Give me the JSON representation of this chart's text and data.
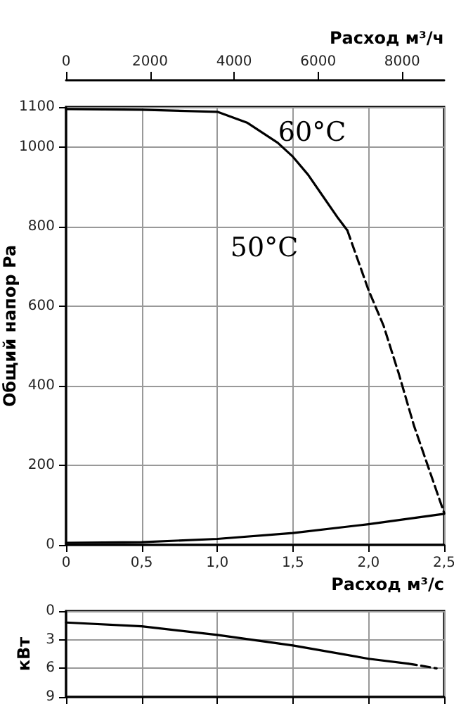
{
  "chart_data": [
    {
      "type": "line",
      "xlabel": "Расход м³/с",
      "ylabel": "Общий напор Pa",
      "x2label": "Расход м³/ч",
      "xlim": [
        0,
        2.5
      ],
      "xticks": [
        0,
        {
          "value": 0.5,
          "label": "0,5"
        },
        {
          "value": 1.0,
          "label": "1,0"
        },
        {
          "value": 1.5,
          "label": "1,5"
        },
        {
          "value": 2.0,
          "label": "2,0"
        },
        {
          "value": 2.5,
          "label": "2,5"
        }
      ],
      "x2lim": [
        0,
        9000
      ],
      "x2ticks": [
        0,
        2000,
        4000,
        6000,
        8000
      ],
      "ylim": [
        0,
        1100
      ],
      "yticks": [
        0,
        200,
        400,
        600,
        800,
        1000,
        1100
      ],
      "grid": true,
      "marker": "none",
      "annotations": [
        "60°C",
        "50°C"
      ],
      "series": [
        {
          "color": "#000000",
          "line_style": "solid",
          "x": [
            0,
            0.5,
            1.0,
            1.2,
            1.4,
            1.5,
            1.6,
            1.7,
            1.8,
            1.86
          ],
          "values": [
            1095,
            1093,
            1088,
            1060,
            1010,
            975,
            930,
            875,
            820,
            790
          ]
        },
        {
          "color": "#000000",
          "line_style": "dashed",
          "x": [
            1.86,
            2.0,
            2.1,
            2.2,
            2.3,
            2.4,
            2.5
          ],
          "values": [
            790,
            640,
            550,
            430,
            300,
            190,
            80
          ]
        },
        {
          "color": "#000000",
          "line_style": "solid",
          "x": [
            0,
            0.5,
            1.0,
            1.5,
            2.0,
            2.5
          ],
          "values": [
            5,
            7,
            15,
            30,
            52,
            78
          ]
        }
      ]
    },
    {
      "type": "line",
      "ylabel": "кВт",
      "xlim": [
        0,
        2.5
      ],
      "xticks": [
        0,
        0.5,
        1.0,
        1.5,
        2.0,
        2.5
      ],
      "ylim": [
        9,
        0
      ],
      "yticks": [
        0,
        3,
        6,
        9
      ],
      "grid": true,
      "marker": "none",
      "tick_labels": "y",
      "series": [
        {
          "color": "#000000",
          "line_style": "solid",
          "x": [
            0,
            0.5,
            1.0,
            1.5,
            2.0,
            2.26
          ],
          "values": [
            1.2,
            1.6,
            2.5,
            3.6,
            5.0,
            5.5
          ]
        },
        {
          "color": "#000000",
          "line_style": "dashed",
          "x": [
            2.26,
            2.45
          ],
          "values": [
            5.5,
            6.0
          ]
        }
      ]
    }
  ]
}
